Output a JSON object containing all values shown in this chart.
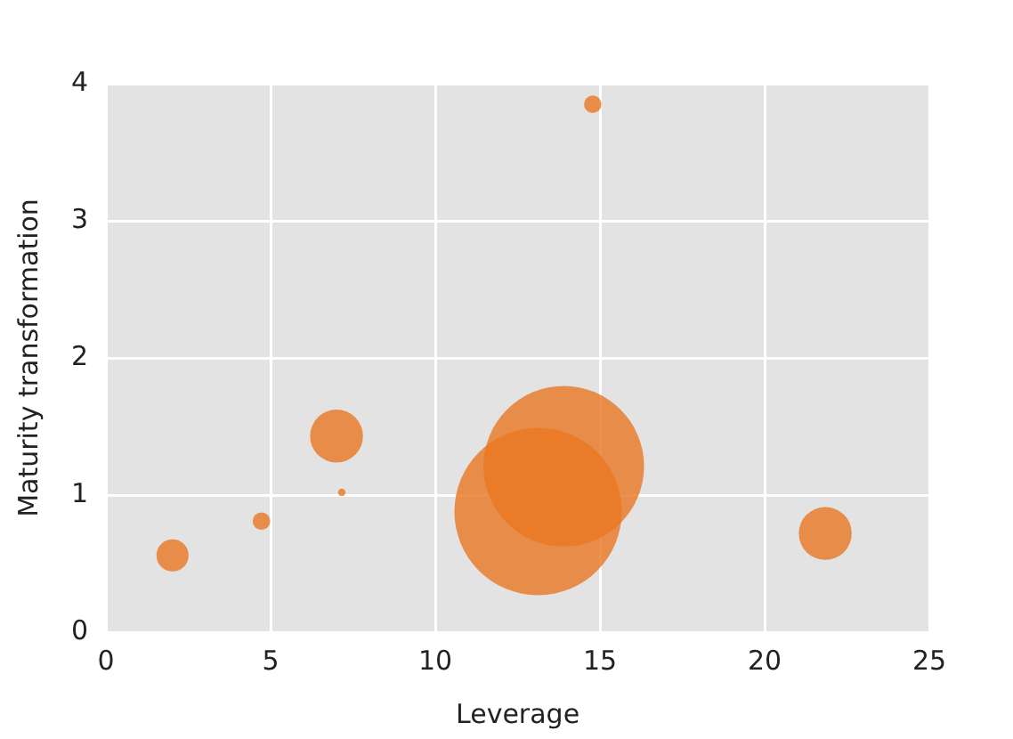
{
  "chart_data": {
    "type": "bubble",
    "xlabel": "Leverage",
    "ylabel": "Maturity transformation",
    "x": [
      2.02,
      4.72,
      7.0,
      7.16,
      13.12,
      13.9,
      14.78,
      21.84
    ],
    "values": [
      0.56,
      0.81,
      1.43,
      1.02,
      0.88,
      1.21,
      3.85,
      0.72
    ],
    "sizes": [
      0.037,
      0.011,
      0.1,
      0.002,
      1,
      0.92,
      0.011,
      0.1
    ],
    "color": "#e87722",
    "xlim": [
      0,
      25
    ],
    "xticks": [
      0,
      5,
      10,
      15,
      20,
      25
    ],
    "ylim": [
      0,
      4
    ],
    "yticks": [
      0,
      1,
      2,
      3,
      4
    ],
    "grid": true,
    "legend": false
  }
}
